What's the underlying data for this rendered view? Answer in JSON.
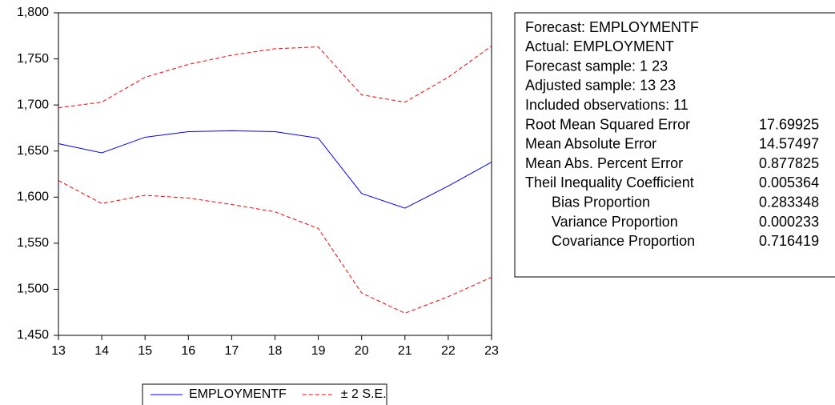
{
  "chart_data": {
    "type": "line",
    "x": [
      13,
      14,
      15,
      16,
      17,
      18,
      19,
      20,
      21,
      22,
      23
    ],
    "xlim": [
      13,
      23
    ],
    "xticks": [
      13,
      14,
      15,
      16,
      17,
      18,
      19,
      20,
      21,
      22,
      23
    ],
    "ylim": [
      1450,
      1800
    ],
    "yticks": [
      {
        "value": 1450,
        "label": "1,450"
      },
      {
        "value": 1500,
        "label": "1,500"
      },
      {
        "value": 1550,
        "label": "1,550"
      },
      {
        "value": 1600,
        "label": "1,600"
      },
      {
        "value": 1650,
        "label": "1,650"
      },
      {
        "value": 1700,
        "label": "1,700"
      },
      {
        "value": 1750,
        "label": "1,750"
      },
      {
        "value": 1800,
        "label": "1,800"
      }
    ],
    "grid": false,
    "series": [
      {
        "name": "EMPLOYMENTF",
        "color": "#0000ff",
        "dashed": false,
        "values": [
          1658,
          1648,
          1665,
          1671,
          1672,
          1671,
          1664,
          1604,
          1588,
          1612,
          1638
        ]
      },
      {
        "name": "± 2 S.E.",
        "color": "#ff0000",
        "dashed": true,
        "values": [
          1697,
          1703,
          1730,
          1744,
          1754,
          1761,
          1763,
          1711,
          1703,
          1730,
          1764
        ],
        "lower_values": [
          1618,
          1593,
          1602,
          1599,
          1592,
          1584,
          1566,
          1496,
          1474,
          1492,
          1513
        ]
      }
    ]
  },
  "stats_box": {
    "header": [
      "Forecast: EMPLOYMENTF",
      "Actual: EMPLOYMENT",
      "Forecast sample: 1 23",
      "Adjusted sample: 13 23",
      "Included observations: 11"
    ],
    "rows": [
      {
        "label": "Root Mean Squared Error",
        "value": 17.69925,
        "indent": false
      },
      {
        "label": "Mean Absolute Error",
        "value": 14.57497,
        "indent": false
      },
      {
        "label": "Mean Abs. Percent Error",
        "value": 0.877825,
        "indent": false
      },
      {
        "label": "Theil Inequality Coefficient",
        "value": 0.005364,
        "indent": false
      },
      {
        "label": "Bias Proportion",
        "value": 0.283348,
        "indent": true
      },
      {
        "label": "Variance Proportion",
        "value": 0.000233,
        "indent": true
      },
      {
        "label": "Covariance Proportion",
        "value": 0.716419,
        "indent": true
      }
    ]
  }
}
